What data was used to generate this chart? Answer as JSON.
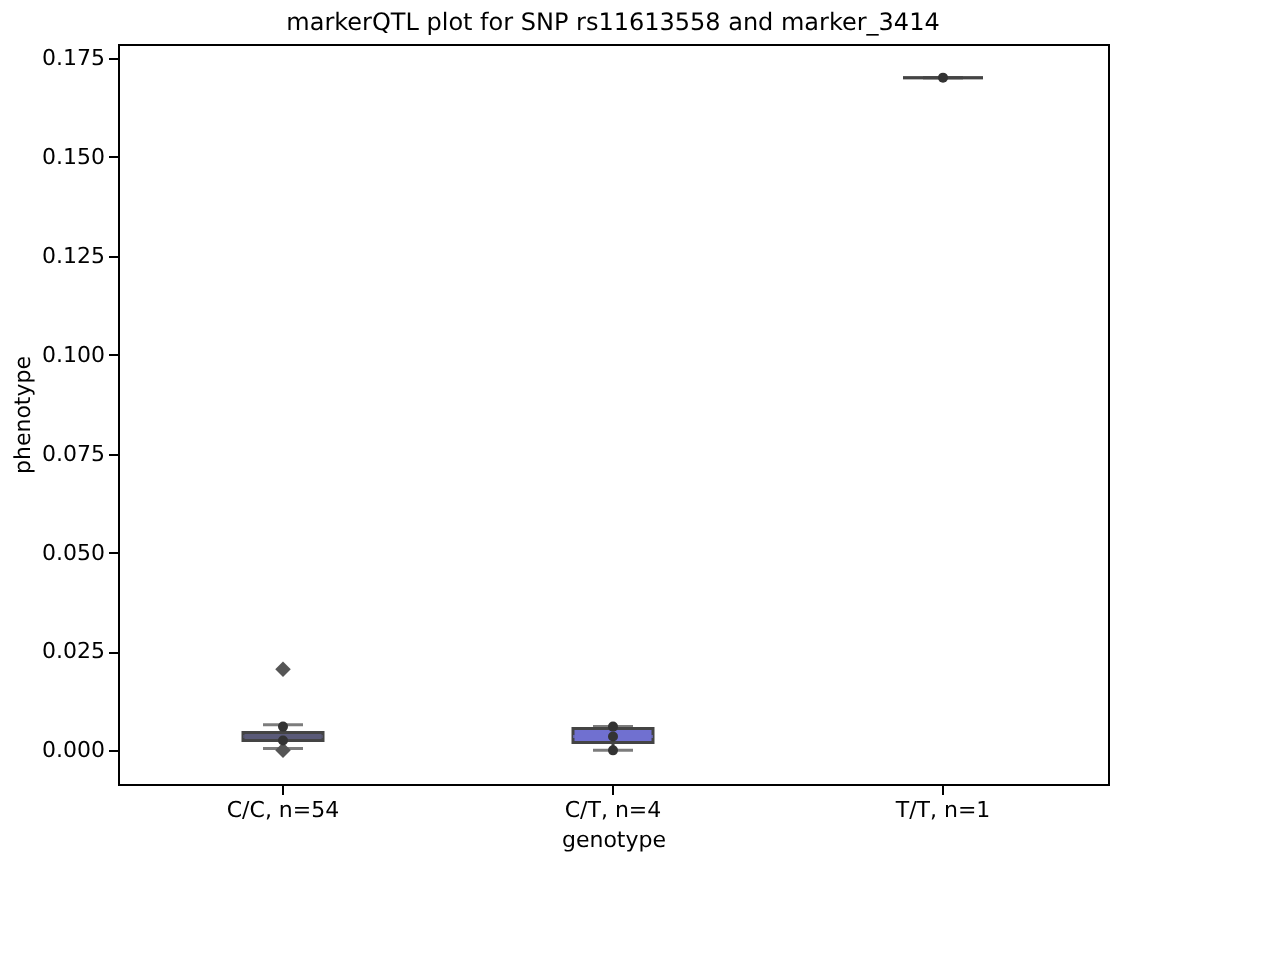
{
  "chart_data": {
    "type": "box",
    "title": "markerQTL plot for SNP rs11613558 and marker_3414",
    "xlabel": "genotype",
    "ylabel": "phenotype",
    "categories": [
      "C/C, n=54",
      "C/T, n=4",
      "T/T, n=1"
    ],
    "colors": [
      "#5a5a78",
      "#7070d0",
      "#444444"
    ],
    "boxes": [
      {
        "low": 0.0005,
        "q1": 0.0025,
        "median": 0.0035,
        "q3": 0.0045,
        "high": 0.0065,
        "outliers": [
          0.0205,
          0.0
        ]
      },
      {
        "low": 0.0,
        "q1": 0.002,
        "median": 0.0035,
        "q3": 0.0055,
        "high": 0.006
      },
      {
        "low": 0.17,
        "q1": 0.17,
        "median": 0.17,
        "q3": 0.17,
        "high": 0.17
      }
    ],
    "series": [
      {
        "type": "scatter",
        "color": "#333333",
        "x": [
          "C/C, n=54",
          "C/C, n=54",
          "C/T, n=4",
          "C/T, n=4",
          "C/T, n=4",
          "T/T, n=1"
        ],
        "values": [
          0.006,
          0.0025,
          0.006,
          0.0035,
          0.0,
          0.17
        ]
      }
    ],
    "ylim": [
      -0.0085,
      0.1785
    ],
    "yticks": [
      {
        "value": 0.0,
        "label": "0.000"
      },
      0.025,
      {
        "value": 0.05,
        "label": "0.050"
      },
      0.075,
      {
        "value": 0.1,
        "label": "0.100"
      },
      0.125,
      {
        "value": 0.15,
        "label": "0.150"
      },
      0.175
    ],
    "grid": false,
    "marker": "circle"
  }
}
